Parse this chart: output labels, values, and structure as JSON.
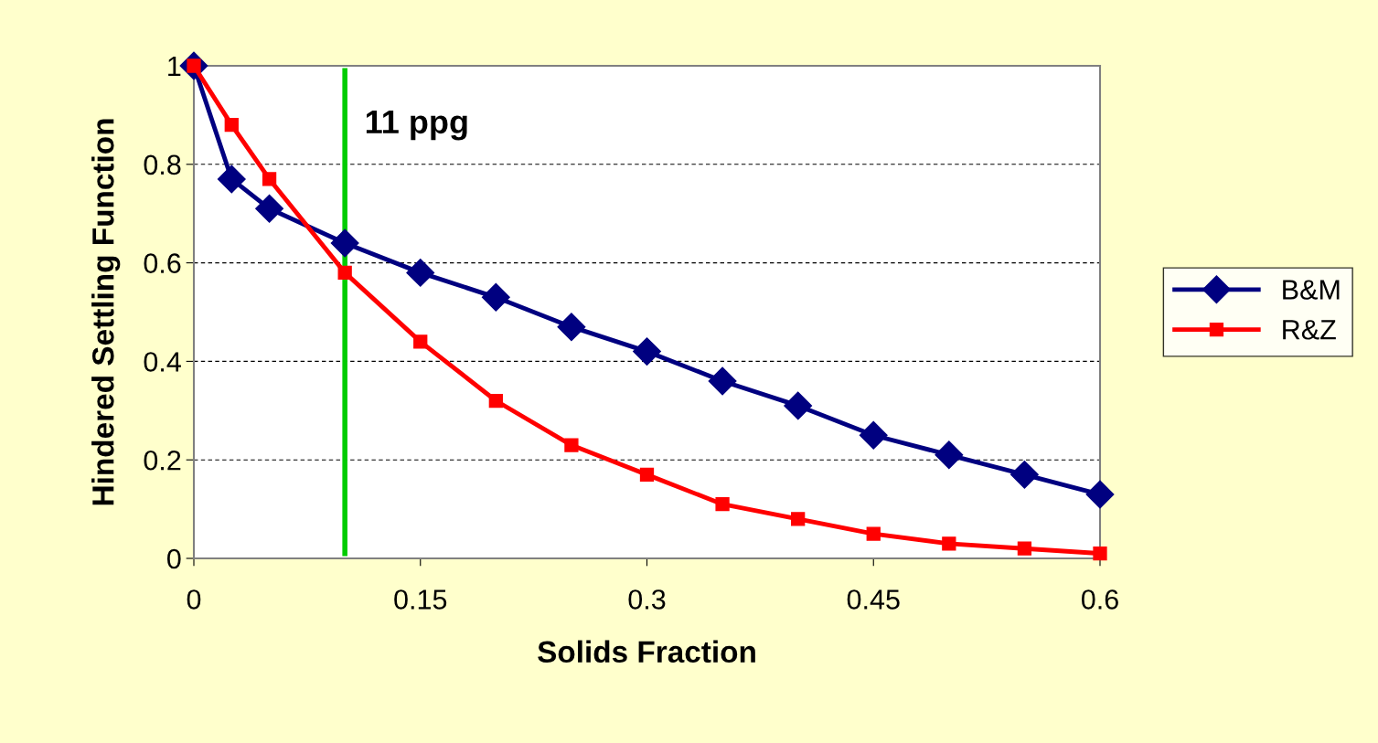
{
  "chart_data": {
    "type": "line",
    "xlabel": "Solids Fraction",
    "ylabel": "Hindered Settling Function",
    "x": [
      0,
      0.025,
      0.05,
      0.1,
      0.15,
      0.2,
      0.25,
      0.3,
      0.35,
      0.4,
      0.45,
      0.5,
      0.55,
      0.6
    ],
    "series": [
      {
        "name": "B&M",
        "color": "#000080",
        "marker": "diamond",
        "values": [
          1.0,
          0.77,
          0.71,
          0.64,
          0.58,
          0.53,
          0.47,
          0.42,
          0.36,
          0.31,
          0.25,
          0.21,
          0.17,
          0.13
        ]
      },
      {
        "name": "R&Z",
        "color": "#ff0000",
        "marker": "square",
        "values": [
          1.0,
          0.88,
          0.77,
          0.58,
          0.44,
          0.32,
          0.23,
          0.17,
          0.11,
          0.08,
          0.05,
          0.03,
          0.02,
          0.01
        ]
      }
    ],
    "xlim": [
      0,
      0.6
    ],
    "xticks": [
      0,
      0.15,
      0.3,
      0.45,
      0.6
    ],
    "ylim": [
      0,
      1
    ],
    "yticks": [
      0,
      0.2,
      0.4,
      0.6,
      0.8,
      1
    ],
    "ref_lines": [
      {
        "axis": "x",
        "value": 0.1,
        "label": "11 ppg",
        "color": "#00cc00"
      }
    ],
    "grid": "y",
    "legend": "right",
    "line_style": "solid"
  }
}
